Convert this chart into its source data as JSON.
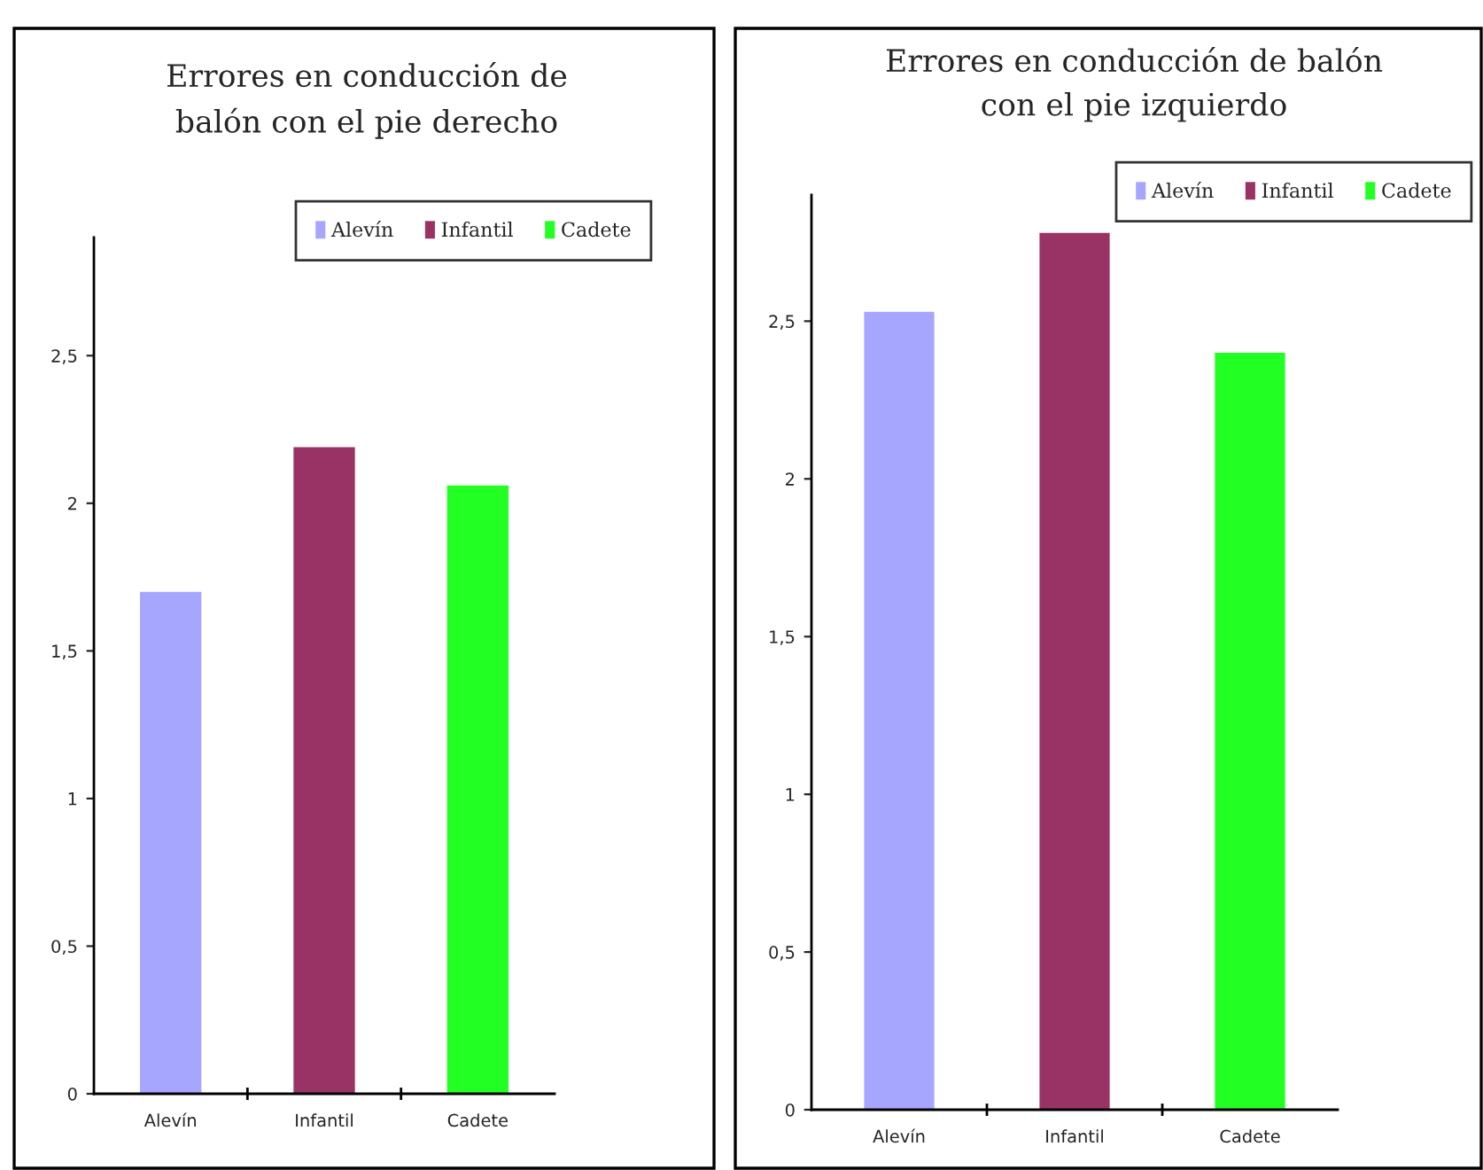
{
  "chart_data": [
    {
      "type": "bar",
      "title": "Errores en conducción de\nbalón con el pie derecho",
      "categories": [
        "Alevín",
        "Infantil",
        "Cadete"
      ],
      "series": [
        {
          "name": "Alevín",
          "color": "#a6a6ff",
          "values": [
            1.7,
            null,
            null
          ]
        },
        {
          "name": "Infantil",
          "color": "#993366",
          "values": [
            null,
            2.19,
            null
          ]
        },
        {
          "name": "Cadete",
          "color": "#22ff22",
          "values": [
            null,
            null,
            2.06
          ]
        }
      ],
      "ylim": [
        0,
        2.9
      ],
      "yticks": [
        0,
        {
          "value": 0.5,
          "label": "0,5"
        },
        1,
        {
          "value": 1.5,
          "label": "1,5"
        },
        2,
        {
          "value": 2.5,
          "label": "2,5"
        }
      ],
      "legend": "top right",
      "grid": false
    },
    {
      "type": "bar",
      "title": "Errores en conducción de balón\ncon el pie izquierdo",
      "categories": [
        "Alevín",
        "Infantil",
        "Cadete"
      ],
      "series": [
        {
          "name": "Alevín",
          "color": "#a6a6ff",
          "values": [
            2.53,
            null,
            null
          ]
        },
        {
          "name": "Infantil",
          "color": "#993366",
          "values": [
            null,
            2.78,
            null
          ]
        },
        {
          "name": "Cadete",
          "color": "#22ff22",
          "values": [
            null,
            null,
            2.4
          ]
        }
      ],
      "ylim": [
        0,
        2.9
      ],
      "yticks": [
        0,
        {
          "value": 0.5,
          "label": "0,5"
        },
        1,
        {
          "value": 1.5,
          "label": "1,5"
        },
        2,
        {
          "value": 2.5,
          "label": "2,5"
        }
      ],
      "legend": "top right",
      "grid": false
    }
  ]
}
